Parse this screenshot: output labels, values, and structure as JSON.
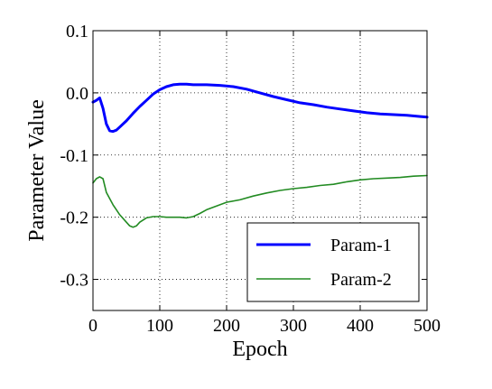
{
  "chart_data": {
    "type": "line",
    "title": "",
    "xlabel": "Epoch",
    "ylabel": "Parameter Value",
    "xlim": [
      0,
      500
    ],
    "ylim": [
      -0.35,
      0.1
    ],
    "xticks": [
      0,
      100,
      200,
      300,
      400,
      500
    ],
    "xtick_labels": [
      "0",
      "100",
      "200",
      "300",
      "400",
      "500"
    ],
    "yticks": [
      0.1,
      0.0,
      -0.1,
      -0.2,
      -0.3
    ],
    "ytick_labels": [
      "0.1",
      "0.0",
      "-0.1",
      "-0.2",
      "-0.3"
    ],
    "grid": true,
    "grid_style": "dotted",
    "legend_position": "bottom-right",
    "series": [
      {
        "name": "Param-1",
        "color": "#0000ff",
        "points": [
          [
            0,
            -0.015
          ],
          [
            5,
            -0.012
          ],
          [
            10,
            -0.008
          ],
          [
            15,
            -0.025
          ],
          [
            20,
            -0.05
          ],
          [
            25,
            -0.061
          ],
          [
            30,
            -0.062
          ],
          [
            35,
            -0.06
          ],
          [
            40,
            -0.055
          ],
          [
            50,
            -0.045
          ],
          [
            60,
            -0.033
          ],
          [
            70,
            -0.022
          ],
          [
            80,
            -0.012
          ],
          [
            90,
            -0.002
          ],
          [
            100,
            0.005
          ],
          [
            110,
            0.01
          ],
          [
            120,
            0.013
          ],
          [
            130,
            0.014
          ],
          [
            140,
            0.014
          ],
          [
            150,
            0.013
          ],
          [
            170,
            0.013
          ],
          [
            190,
            0.012
          ],
          [
            210,
            0.01
          ],
          [
            230,
            0.006
          ],
          [
            250,
            0.0
          ],
          [
            270,
            -0.006
          ],
          [
            290,
            -0.011
          ],
          [
            310,
            -0.016
          ],
          [
            330,
            -0.019
          ],
          [
            350,
            -0.023
          ],
          [
            370,
            -0.026
          ],
          [
            390,
            -0.029
          ],
          [
            410,
            -0.032
          ],
          [
            430,
            -0.034
          ],
          [
            450,
            -0.035
          ],
          [
            470,
            -0.036
          ],
          [
            490,
            -0.038
          ],
          [
            500,
            -0.039
          ]
        ]
      },
      {
        "name": "Param-2",
        "color": "#228b22",
        "points": [
          [
            0,
            -0.145
          ],
          [
            5,
            -0.138
          ],
          [
            10,
            -0.135
          ],
          [
            15,
            -0.138
          ],
          [
            20,
            -0.16
          ],
          [
            30,
            -0.18
          ],
          [
            40,
            -0.196
          ],
          [
            50,
            -0.208
          ],
          [
            55,
            -0.214
          ],
          [
            60,
            -0.216
          ],
          [
            65,
            -0.214
          ],
          [
            70,
            -0.208
          ],
          [
            80,
            -0.201
          ],
          [
            90,
            -0.199
          ],
          [
            100,
            -0.199
          ],
          [
            110,
            -0.2
          ],
          [
            120,
            -0.2
          ],
          [
            130,
            -0.2
          ],
          [
            140,
            -0.201
          ],
          [
            150,
            -0.199
          ],
          [
            160,
            -0.194
          ],
          [
            170,
            -0.188
          ],
          [
            180,
            -0.184
          ],
          [
            190,
            -0.18
          ],
          [
            200,
            -0.176
          ],
          [
            220,
            -0.172
          ],
          [
            240,
            -0.166
          ],
          [
            260,
            -0.161
          ],
          [
            280,
            -0.157
          ],
          [
            300,
            -0.154
          ],
          [
            320,
            -0.152
          ],
          [
            340,
            -0.149
          ],
          [
            360,
            -0.147
          ],
          [
            380,
            -0.143
          ],
          [
            400,
            -0.14
          ],
          [
            420,
            -0.138
          ],
          [
            440,
            -0.137
          ],
          [
            460,
            -0.136
          ],
          [
            480,
            -0.134
          ],
          [
            500,
            -0.133
          ]
        ]
      }
    ]
  }
}
